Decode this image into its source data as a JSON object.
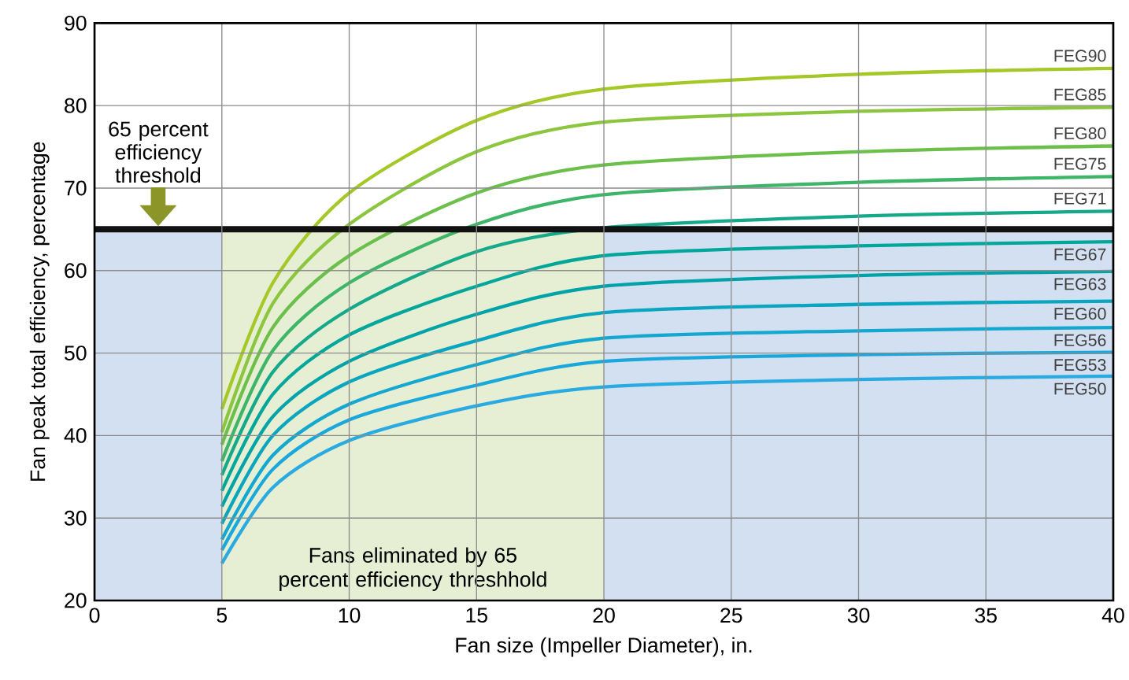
{
  "chart_data": {
    "type": "line",
    "xlabel": "Fan size (Impeller Diameter), in.",
    "ylabel": "Fan peak total efficiency, percentage",
    "xlim": [
      0,
      40
    ],
    "ylim": [
      20,
      90
    ],
    "xticks": [
      0,
      5,
      10,
      15,
      20,
      25,
      30,
      35,
      40
    ],
    "yticks": [
      20,
      30,
      40,
      50,
      60,
      70,
      80,
      90
    ],
    "grid": true,
    "line_style": "solid",
    "marker": "none",
    "x": [
      5,
      7,
      10,
      15,
      20,
      30,
      40
    ],
    "series": [
      {
        "name": "FEG90",
        "color": "#a5c829",
        "values": [
          43.2,
          58.5,
          69.4,
          78.2,
          82.0,
          83.8,
          84.5
        ]
      },
      {
        "name": "FEG85",
        "color": "#8cc63f",
        "values": [
          40.4,
          56.0,
          65.6,
          74.4,
          78.0,
          79.3,
          79.8
        ]
      },
      {
        "name": "FEG80",
        "color": "#6dbf4b",
        "values": [
          38.9,
          53.1,
          61.8,
          69.4,
          72.8,
          74.4,
          75.1
        ]
      },
      {
        "name": "FEG75",
        "color": "#3fb56a",
        "values": [
          36.9,
          50.3,
          58.5,
          65.6,
          69.2,
          70.7,
          71.4
        ]
      },
      {
        "name": "FEG71",
        "color": "#15a98a",
        "values": [
          35.2,
          47.7,
          55.3,
          62.3,
          65.2,
          66.6,
          67.2
        ]
      },
      {
        "name": "FEG67",
        "color": "#00a79a",
        "values": [
          33.3,
          45.0,
          52.2,
          58.1,
          61.8,
          63.0,
          63.5
        ]
      },
      {
        "name": "FEG63",
        "color": "#00a3a8",
        "values": [
          31.4,
          42.3,
          49.0,
          54.7,
          58.1,
          59.4,
          59.9
        ]
      },
      {
        "name": "FEG60",
        "color": "#0aa5bf",
        "values": [
          29.3,
          40.0,
          46.5,
          51.5,
          54.9,
          55.9,
          56.3
        ]
      },
      {
        "name": "FEG56",
        "color": "#14a8d0",
        "values": [
          27.4,
          37.6,
          43.8,
          48.6,
          51.8,
          52.7,
          53.1
        ]
      },
      {
        "name": "FEG53",
        "color": "#1aa8dc",
        "values": [
          26.1,
          35.9,
          41.9,
          46.1,
          49.0,
          49.8,
          50.1
        ]
      },
      {
        "name": "FEG50",
        "color": "#29abe2",
        "values": [
          24.5,
          33.7,
          39.4,
          43.6,
          45.9,
          46.8,
          47.2
        ]
      }
    ],
    "ref_lines": [
      {
        "axis": "y",
        "value": 65,
        "label": "65 percent efficiency threshold",
        "color": "#111111"
      }
    ],
    "bands": [
      {
        "axis": "y",
        "from": 20,
        "to": 65,
        "color": "#d3e0f1"
      },
      {
        "axis": "x",
        "from": 5,
        "to": 20,
        "label": "Fans eliminated by 65 percent efficiency threshhold",
        "color": "#e6efd4"
      }
    ]
  }
}
